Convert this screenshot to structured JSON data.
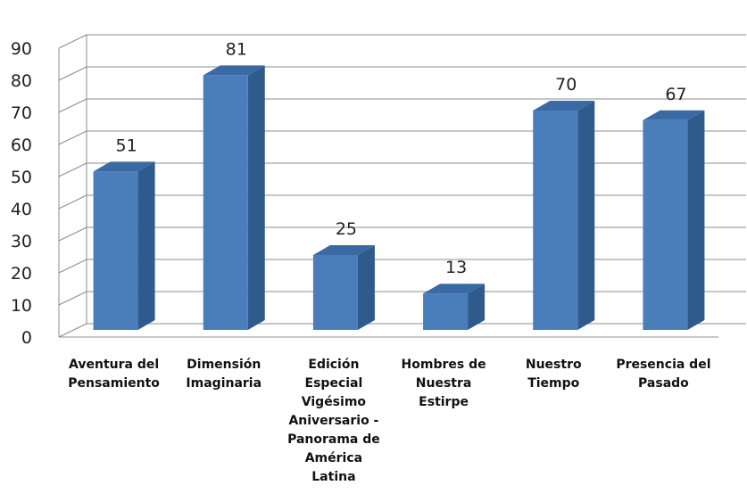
{
  "chart_data": {
    "type": "bar",
    "categories": [
      [
        "Aventura del",
        "Pensamiento"
      ],
      [
        "Dimensión",
        "Imaginaria"
      ],
      [
        "Edición",
        "Especial",
        "Vigésimo",
        "Aniversario -",
        "Panorama de",
        "América",
        "Latina"
      ],
      [
        "Hombres de",
        "Nuestra",
        "Estirpe"
      ],
      [
        "Nuestro",
        "Tiempo"
      ],
      [
        "Presencia del",
        "Pasado"
      ]
    ],
    "values": [
      51,
      81,
      25,
      13,
      70,
      67
    ],
    "value_labels": [
      "51",
      "81",
      "25",
      "13",
      "70",
      "67"
    ],
    "yticks": [
      "0",
      "10",
      "20",
      "30",
      "40",
      "50",
      "60",
      "70",
      "80",
      "90"
    ],
    "ylim": [
      0,
      90
    ],
    "title": "",
    "xlabel": "",
    "ylabel": "",
    "grid": true,
    "legend": "none",
    "colors": {
      "bar_front": "#4a7ebb",
      "bar_side": "#2f5a8c",
      "bar_top": "#3a6aa3",
      "grid": "#8c8c8c"
    }
  }
}
